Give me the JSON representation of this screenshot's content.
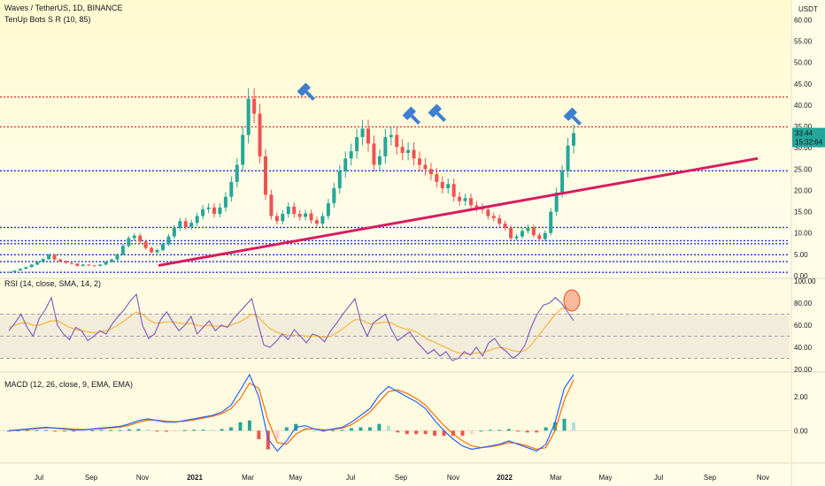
{
  "header": {
    "symbol": "Waves / TetherUS, 1D, BINANCE",
    "indicator": "TenUp Bots S R (10, 85)",
    "currency": "USDT"
  },
  "price_label": {
    "value": "33.44",
    "countdown": "15:32:64"
  },
  "rsi_header": "RSI (14, close, SMA, 14, 2)",
  "macd_header": "MACD (12, 26, close, 9, EMA, EMA)",
  "colors": {
    "background": "#fffde6",
    "candle_up": "#26a69a",
    "candle_down": "#ef5350",
    "trendline": "#d81b60",
    "resistance": "#e53935",
    "support": "#1e35c8",
    "rsi_line": "#7e57c2",
    "rsi_ma": "#f6b73c",
    "macd_line": "#2962ff",
    "signal_line": "#ff6d00",
    "price_label": "#26a69a",
    "marker": "#3f7fd0",
    "rsi_circle": "#f9b99a"
  },
  "chart_data": [
    {
      "type": "line",
      "panel": "price",
      "title": "Waves / TetherUS, 1D, BINANCE",
      "x_labels": [
        "Jul",
        "Sep",
        "Nov",
        "2021",
        "Mar",
        "May",
        "Jul",
        "Sep",
        "Nov",
        "2022",
        "Mar",
        "May",
        "Jul",
        "Sep",
        "Nov"
      ],
      "y_ticks": [
        "0.00",
        "5.00",
        "10.00",
        "15.00",
        "20.00",
        "25.00",
        "30.00",
        "35.00",
        "40.00",
        "45.00",
        "50.00",
        "55.00",
        "60.00"
      ],
      "ylim": [
        0,
        63
      ],
      "series": [
        {
          "values": [
            0.9,
            1.2,
            1.6,
            2.0,
            2.6,
            3.2,
            3.9,
            4.9,
            3.8,
            3.4,
            3.0,
            2.8,
            2.3,
            2.6,
            2.4,
            2.3,
            2.6,
            3.2,
            3.8,
            5.0,
            7.0,
            8.8,
            9.4,
            8.0,
            6.5,
            5.5,
            6.0,
            7.4,
            9.2,
            11.2,
            12.8,
            11.4,
            12.4,
            14.0,
            15.6,
            16.0,
            14.5,
            16.0,
            18.5,
            22.0,
            26.0,
            33.0,
            41.5,
            38.0,
            28.0,
            19.0,
            14.0,
            12.8,
            14.5,
            16.2,
            14.5,
            13.8,
            14.6,
            13.0,
            12.2,
            14.0,
            17.0,
            20.5,
            24.5,
            27.5,
            29.2,
            32.5,
            34.5,
            31.0,
            26.0,
            28.0,
            32.5,
            33.0,
            30.2,
            28.8,
            29.5,
            27.5,
            26.0,
            25.0,
            23.8,
            22.0,
            20.5,
            21.5,
            18.5,
            17.5,
            18.2,
            16.5,
            16.0,
            15.5,
            14.0,
            13.5,
            12.2,
            11.2,
            8.8,
            9.2,
            10.5,
            11.3,
            9.5,
            8.6,
            10.0,
            15.0,
            19.5,
            24.5,
            30.5,
            33.44
          ],
          "range": "2020-06 to 2022-03, daily (sampled)"
        }
      ],
      "support_resistance_levels": [
        41.9,
        34.9,
        24.6,
        11.3,
        8.2,
        7.5,
        4.9,
        3.3,
        0.8
      ],
      "trendline": {
        "from": [
          "2020-10",
          2.4
        ],
        "to": [
          "2022-11",
          27.5
        ]
      },
      "markers_at": [
        "2021-05",
        "2021-09",
        "2021-10",
        "2022-03"
      ],
      "last_price": 33.44
    },
    {
      "type": "line",
      "panel": "rsi",
      "title": "RSI (14, close, SMA, 14, 2)",
      "y_ticks": [
        "20.00",
        "40.00",
        "60.00",
        "80.00",
        "100.00"
      ],
      "levels": [
        70,
        50,
        30
      ],
      "ylim": [
        20,
        100
      ],
      "values": [
        55,
        62,
        70,
        58,
        50,
        66,
        74,
        85,
        60,
        52,
        47,
        58,
        55,
        46,
        50,
        55,
        52,
        61,
        68,
        74,
        82,
        88,
        60,
        48,
        52,
        65,
        72,
        63,
        55,
        60,
        68,
        52,
        58,
        64,
        55,
        60,
        58,
        66,
        72,
        78,
        84,
        62,
        42,
        40,
        45,
        52,
        47,
        56,
        50,
        44,
        52,
        50,
        45,
        55,
        62,
        70,
        77,
        84,
        62,
        50,
        62,
        66,
        70,
        56,
        46,
        50,
        54,
        46,
        40,
        34,
        38,
        32,
        36,
        28,
        30,
        36,
        33,
        40,
        32,
        44,
        48,
        40,
        36,
        30,
        34,
        42,
        58,
        70,
        78,
        80,
        85,
        80,
        72,
        64
      ],
      "ma_values": [
        58,
        60,
        62,
        62,
        60,
        60,
        62,
        64,
        64,
        61,
        58,
        56,
        55,
        54,
        53,
        54,
        55,
        57,
        60,
        64,
        68,
        72,
        70,
        65,
        62,
        62,
        63,
        63,
        62,
        61,
        62,
        60,
        59,
        60,
        59,
        59,
        59,
        61,
        63,
        66,
        70,
        68,
        62,
        57,
        54,
        52,
        51,
        51,
        51,
        50,
        50,
        50,
        49,
        50,
        53,
        57,
        61,
        65,
        65,
        62,
        61,
        62,
        63,
        62,
        59,
        57,
        56,
        54,
        51,
        47,
        45,
        42,
        40,
        37,
        35,
        34,
        34,
        35,
        35,
        37,
        39,
        40,
        39,
        37,
        36,
        37,
        42,
        49,
        56,
        63,
        70,
        75,
        76,
        74
      ]
    },
    {
      "type": "bar",
      "panel": "macd",
      "title": "MACD (12, 26, close, 9, EMA, EMA)",
      "y_ticks": [
        "0.00",
        "2.00"
      ],
      "ylim": [
        -1.8,
        3.3
      ],
      "macd": [
        0.0,
        0.05,
        0.1,
        0.15,
        0.2,
        0.15,
        0.1,
        0.05,
        0.05,
        0.1,
        0.15,
        0.2,
        0.25,
        0.4,
        0.6,
        0.7,
        0.6,
        0.5,
        0.5,
        0.6,
        0.7,
        0.8,
        0.9,
        1.1,
        1.5,
        2.4,
        3.4,
        2.0,
        -0.5,
        -1.2,
        -0.6,
        0.2,
        0.3,
        0.1,
        0.0,
        0.1,
        0.2,
        0.5,
        0.9,
        1.3,
        2.1,
        2.6,
        2.3,
        2.0,
        1.7,
        1.3,
        0.6,
        0.0,
        -0.5,
        -0.9,
        -1.1,
        -1.0,
        -0.9,
        -0.8,
        -0.6,
        -0.8,
        -1.0,
        -1.2,
        -0.8,
        0.5,
        2.5,
        3.5
      ],
      "signal": [
        0.0,
        0.03,
        0.07,
        0.12,
        0.16,
        0.16,
        0.13,
        0.09,
        0.07,
        0.08,
        0.11,
        0.16,
        0.21,
        0.32,
        0.5,
        0.62,
        0.62,
        0.56,
        0.53,
        0.56,
        0.64,
        0.74,
        0.85,
        1.0,
        1.3,
        1.9,
        2.8,
        2.5,
        0.6,
        -0.7,
        -0.8,
        -0.2,
        0.1,
        0.1,
        0.05,
        0.07,
        0.15,
        0.35,
        0.7,
        1.1,
        1.7,
        2.3,
        2.4,
        2.2,
        1.9,
        1.5,
        0.9,
        0.3,
        -0.2,
        -0.6,
        -0.9,
        -1.0,
        -0.95,
        -0.85,
        -0.7,
        -0.75,
        -0.9,
        -1.1,
        -1.0,
        0.0,
        1.8,
        3.0
      ],
      "histogram": [
        0.0,
        0.02,
        0.03,
        0.03,
        0.04,
        -0.01,
        -0.03,
        -0.04,
        -0.02,
        0.02,
        0.04,
        0.04,
        0.04,
        0.08,
        0.1,
        0.08,
        -0.02,
        -0.06,
        -0.03,
        0.04,
        0.06,
        0.06,
        0.05,
        0.1,
        0.2,
        0.5,
        0.6,
        -0.5,
        -1.1,
        -0.5,
        0.2,
        0.4,
        0.2,
        0.0,
        -0.05,
        0.03,
        0.05,
        0.15,
        0.2,
        0.2,
        0.4,
        0.3,
        -0.1,
        -0.2,
        -0.2,
        -0.2,
        -0.3,
        -0.3,
        -0.3,
        -0.3,
        -0.2,
        0.0,
        0.05,
        0.05,
        0.1,
        -0.05,
        -0.1,
        -0.1,
        0.2,
        0.5,
        0.7,
        0.5
      ]
    }
  ]
}
